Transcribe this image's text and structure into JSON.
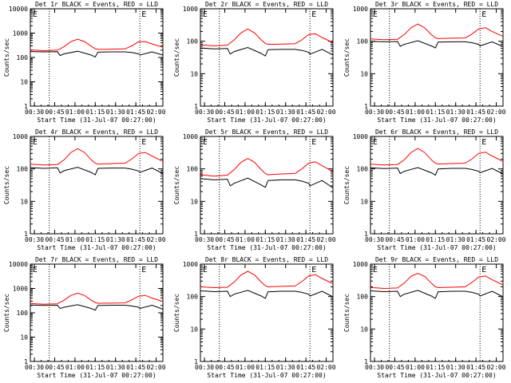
{
  "figure": {
    "background": "#ffffff",
    "axis_color": "#000000",
    "events_color": "#000000",
    "lld_color": "#ff0000"
  },
  "chart_data": [
    {
      "type": "line",
      "title": "Det 1r BLACK = Events, RED = LLD",
      "ylabel": "Counts/sec",
      "xlabel": "Start Time (31-Jul-07 00:27:00)",
      "x_ticks": [
        "00:30",
        "00:45",
        "01:00",
        "01:15",
        "01:30",
        "01:45",
        "02:00"
      ],
      "y_ticks": [
        "1",
        "10",
        "100",
        "1000",
        "10000"
      ],
      "yscale": "log",
      "ylim": [
        1,
        10000
      ],
      "xlim_minutes": [
        0,
        98
      ],
      "markers": [
        {
          "label": "E",
          "x_minutes": 0.5
        },
        {
          "label": "E",
          "x_minutes": 81
        }
      ],
      "vlines_minutes": [
        14,
        81
      ],
      "series": [
        {
          "name": "Events",
          "color": "#000000",
          "x": [
            0,
            10,
            20,
            22,
            25,
            35,
            45,
            48,
            50,
            60,
            70,
            75,
            80,
            81,
            90,
            98
          ],
          "values": [
            175,
            170,
            172,
            120,
            140,
            180,
            125,
            105,
            165,
            170,
            170,
            160,
            140,
            125,
            170,
            125
          ]
        },
        {
          "name": "LLD",
          "color": "#ff0000",
          "x": [
            0,
            10,
            20,
            25,
            30,
            35,
            40,
            45,
            48,
            50,
            60,
            70,
            75,
            80,
            85,
            90,
            98
          ],
          "values": [
            205,
            190,
            200,
            280,
            450,
            560,
            450,
            290,
            230,
            215,
            220,
            225,
            300,
            440,
            450,
            360,
            260
          ]
        }
      ]
    },
    {
      "type": "line",
      "title": "Det 2r BLACK = Events, RED = LLD",
      "ylabel": "Counts/sec",
      "xlabel": "Start Time (31-Jul-07 00:27:00)",
      "x_ticks": [
        "00:30",
        "00:45",
        "01:00",
        "01:15",
        "01:30",
        "01:45",
        "02:00"
      ],
      "y_ticks": [
        "1",
        "10",
        "100",
        "1000"
      ],
      "yscale": "log",
      "ylim": [
        1,
        1000
      ],
      "xlim_minutes": [
        0,
        98
      ],
      "markers": [
        {
          "label": "E",
          "x_minutes": 0.5
        },
        {
          "label": "E",
          "x_minutes": 81
        }
      ],
      "vlines_minutes": [
        14,
        81
      ],
      "series": [
        {
          "name": "Events",
          "color": "#000000",
          "x": [
            0,
            10,
            20,
            22,
            25,
            35,
            45,
            48,
            50,
            60,
            70,
            75,
            80,
            81,
            90,
            98
          ],
          "values": [
            62,
            58,
            60,
            40,
            48,
            64,
            42,
            35,
            55,
            56,
            56,
            52,
            46,
            40,
            56,
            38
          ]
        },
        {
          "name": "LLD",
          "color": "#ff0000",
          "x": [
            0,
            10,
            20,
            25,
            30,
            35,
            40,
            45,
            48,
            50,
            60,
            70,
            75,
            80,
            85,
            90,
            98
          ],
          "values": [
            78,
            72,
            76,
            110,
            180,
            240,
            180,
            110,
            86,
            80,
            82,
            84,
            110,
            160,
            170,
            130,
            90
          ]
        }
      ]
    },
    {
      "type": "line",
      "title": "Det 3r BLACK = Events, RED = LLD",
      "ylabel": "Counts/sec",
      "xlabel": "Start Time (31-Jul-07 00:27:00)",
      "x_ticks": [
        "00:30",
        "00:45",
        "01:00",
        "01:15",
        "01:30",
        "01:45",
        "02:00"
      ],
      "y_ticks": [
        "1",
        "10",
        "100",
        "1000"
      ],
      "yscale": "log",
      "ylim": [
        1,
        1000
      ],
      "xlim_minutes": [
        0,
        98
      ],
      "markers": [
        {
          "label": "E",
          "x_minutes": 0.5
        },
        {
          "label": "E",
          "x_minutes": 81
        }
      ],
      "vlines_minutes": [
        14,
        81
      ],
      "series": [
        {
          "name": "Events",
          "color": "#000000",
          "x": [
            0,
            10,
            20,
            22,
            25,
            35,
            45,
            48,
            50,
            60,
            70,
            75,
            80,
            81,
            90,
            98
          ],
          "values": [
            100,
            96,
            98,
            70,
            80,
            104,
            72,
            62,
            94,
            96,
            96,
            90,
            80,
            72,
            96,
            68
          ]
        },
        {
          "name": "LLD",
          "color": "#ff0000",
          "x": [
            0,
            10,
            20,
            25,
            30,
            35,
            40,
            45,
            48,
            50,
            60,
            70,
            75,
            80,
            85,
            90,
            98
          ],
          "values": [
            118,
            112,
            115,
            160,
            260,
            340,
            260,
            160,
            128,
            120,
            124,
            126,
            165,
            240,
            260,
            200,
            140
          ]
        }
      ]
    },
    {
      "type": "line",
      "title": "Det 4r BLACK = Events, RED = LLD",
      "ylabel": "Counts/sec",
      "xlabel": "Start Time (31-Jul-07 00:27:00)",
      "x_ticks": [
        "00:30",
        "00:45",
        "01:00",
        "01:15",
        "01:30",
        "01:45",
        "02:00"
      ],
      "y_ticks": [
        "1",
        "10",
        "100",
        "1000"
      ],
      "yscale": "log",
      "ylim": [
        1,
        1000
      ],
      "xlim_minutes": [
        0,
        98
      ],
      "markers": [
        {
          "label": "E",
          "x_minutes": 0.5
        },
        {
          "label": "E",
          "x_minutes": 81
        }
      ],
      "vlines_minutes": [
        14,
        81
      ],
      "series": [
        {
          "name": "Events",
          "color": "#000000",
          "x": [
            0,
            10,
            20,
            22,
            25,
            35,
            45,
            48,
            50,
            60,
            70,
            75,
            80,
            81,
            90,
            98
          ],
          "values": [
            110,
            104,
            108,
            75,
            88,
            112,
            78,
            66,
            104,
            106,
            106,
            98,
            86,
            78,
            106,
            72
          ]
        },
        {
          "name": "LLD",
          "color": "#ff0000",
          "x": [
            0,
            10,
            20,
            25,
            30,
            35,
            40,
            45,
            48,
            50,
            60,
            70,
            75,
            80,
            85,
            90,
            98
          ],
          "values": [
            140,
            132,
            136,
            190,
            320,
            420,
            320,
            190,
            150,
            140,
            146,
            150,
            200,
            300,
            320,
            250,
            170
          ]
        }
      ]
    },
    {
      "type": "line",
      "title": "Det 5r BLACK = Events, RED = LLD",
      "ylabel": "Counts/sec",
      "xlabel": "Start Time (31-Jul-07 00:27:00)",
      "x_ticks": [
        "00:30",
        "00:45",
        "01:00",
        "01:15",
        "01:30",
        "01:45",
        "02:00"
      ],
      "y_ticks": [
        "1",
        "10",
        "100",
        "1000"
      ],
      "yscale": "log",
      "ylim": [
        1,
        1000
      ],
      "xlim_minutes": [
        0,
        98
      ],
      "markers": [
        {
          "label": "E",
          "x_minutes": 0.5
        },
        {
          "label": "E",
          "x_minutes": 81
        }
      ],
      "vlines_minutes": [
        14,
        81
      ],
      "series": [
        {
          "name": "Events",
          "color": "#000000",
          "x": [
            0,
            10,
            20,
            22,
            25,
            35,
            45,
            48,
            50,
            60,
            70,
            75,
            80,
            81,
            90,
            98
          ],
          "values": [
            50,
            46,
            48,
            30,
            36,
            52,
            32,
            27,
            44,
            46,
            46,
            42,
            36,
            30,
            44,
            26
          ]
        },
        {
          "name": "LLD",
          "color": "#ff0000",
          "x": [
            0,
            10,
            20,
            25,
            30,
            35,
            40,
            45,
            48,
            50,
            60,
            70,
            75,
            80,
            85,
            90,
            98
          ],
          "values": [
            66,
            60,
            64,
            95,
            160,
            210,
            160,
            95,
            72,
            66,
            70,
            72,
            100,
            150,
            165,
            125,
            82
          ]
        }
      ]
    },
    {
      "type": "line",
      "title": "Det 6r BLACK = Events, RED = LLD",
      "ylabel": "Counts/sec",
      "xlabel": "Start Time (31-Jul-07 00:27:00)",
      "x_ticks": [
        "00:30",
        "00:45",
        "01:00",
        "01:15",
        "01:30",
        "01:45",
        "02:00"
      ],
      "y_ticks": [
        "1",
        "10",
        "100",
        "1000"
      ],
      "yscale": "log",
      "ylim": [
        1,
        1000
      ],
      "xlim_minutes": [
        0,
        98
      ],
      "markers": [
        {
          "label": "E",
          "x_minutes": 0.5
        },
        {
          "label": "E",
          "x_minutes": 81
        }
      ],
      "vlines_minutes": [
        14,
        81
      ],
      "series": [
        {
          "name": "Events",
          "color": "#000000",
          "x": [
            0,
            10,
            20,
            22,
            25,
            35,
            45,
            48,
            50,
            60,
            70,
            75,
            80,
            81,
            90,
            98
          ],
          "values": [
            108,
            102,
            106,
            72,
            84,
            110,
            76,
            64,
            100,
            104,
            104,
            96,
            84,
            76,
            104,
            70
          ]
        },
        {
          "name": "LLD",
          "color": "#ff0000",
          "x": [
            0,
            10,
            20,
            25,
            30,
            35,
            40,
            45,
            48,
            50,
            60,
            70,
            75,
            80,
            85,
            90,
            98
          ],
          "values": [
            140,
            132,
            136,
            190,
            320,
            430,
            320,
            190,
            150,
            142,
            146,
            150,
            200,
            300,
            330,
            250,
            170
          ]
        }
      ]
    },
    {
      "type": "line",
      "title": "Det 7r BLACK = Events, RED = LLD",
      "ylabel": "Counts/sec",
      "xlabel": "Start Time (31-Jul-07 00:27:00)",
      "x_ticks": [
        "00:30",
        "00:45",
        "01:00",
        "01:15",
        "01:30",
        "01:45",
        "02:00"
      ],
      "y_ticks": [
        "1",
        "10",
        "100",
        "1000",
        "10000"
      ],
      "yscale": "log",
      "ylim": [
        1,
        10000
      ],
      "xlim_minutes": [
        0,
        98
      ],
      "markers": [
        {
          "label": "E",
          "x_minutes": 0.5
        },
        {
          "label": "E",
          "x_minutes": 81
        }
      ],
      "vlines_minutes": [
        14,
        81
      ],
      "series": [
        {
          "name": "Events",
          "color": "#000000",
          "x": [
            0,
            10,
            20,
            22,
            25,
            35,
            45,
            48,
            50,
            60,
            70,
            75,
            80,
            81,
            90,
            98
          ],
          "values": [
            210,
            200,
            205,
            150,
            170,
            215,
            150,
            128,
            200,
            205,
            205,
            190,
            170,
            150,
            205,
            140
          ]
        },
        {
          "name": "LLD",
          "color": "#ff0000",
          "x": [
            0,
            10,
            20,
            25,
            30,
            35,
            40,
            45,
            48,
            50,
            60,
            70,
            75,
            80,
            85,
            90,
            98
          ],
          "values": [
            240,
            225,
            235,
            330,
            520,
            640,
            520,
            330,
            265,
            245,
            250,
            255,
            340,
            480,
            520,
            400,
            290
          ]
        }
      ]
    },
    {
      "type": "line",
      "title": "Det 8r BLACK = Events, RED = LLD",
      "ylabel": "Counts/sec",
      "xlabel": "Start Time (31-Jul-07 00:27:00)",
      "x_ticks": [
        "00:30",
        "00:45",
        "01:00",
        "01:15",
        "01:30",
        "01:45",
        "02:00"
      ],
      "y_ticks": [
        "1",
        "10",
        "100",
        "1000"
      ],
      "yscale": "log",
      "ylim": [
        1,
        1000
      ],
      "xlim_minutes": [
        0,
        98
      ],
      "markers": [
        {
          "label": "E",
          "x_minutes": 0.5
        },
        {
          "label": "E",
          "x_minutes": 81
        }
      ],
      "vlines_minutes": [
        14,
        81
      ],
      "series": [
        {
          "name": "Events",
          "color": "#000000",
          "x": [
            0,
            10,
            20,
            22,
            25,
            35,
            45,
            48,
            50,
            60,
            70,
            75,
            80,
            81,
            90,
            98
          ],
          "values": [
            150,
            142,
            146,
            100,
            118,
            155,
            104,
            88,
            140,
            146,
            146,
            135,
            118,
            104,
            146,
            98
          ]
        },
        {
          "name": "LLD",
          "color": "#ff0000",
          "x": [
            0,
            10,
            20,
            25,
            30,
            35,
            40,
            45,
            48,
            50,
            60,
            70,
            75,
            80,
            85,
            90,
            98
          ],
          "values": [
            200,
            188,
            194,
            280,
            460,
            600,
            460,
            280,
            215,
            200,
            206,
            212,
            290,
            430,
            470,
            360,
            250
          ]
        }
      ]
    },
    {
      "type": "line",
      "title": "Det 9r BLACK = Events, RED = LLD",
      "ylabel": "Counts/sec",
      "xlabel": "Start Time (31-Jul-07 00:27:00)",
      "x_ticks": [
        "00:30",
        "00:45",
        "01:00",
        "01:15",
        "01:30",
        "01:45",
        "02:00"
      ],
      "y_ticks": [
        "1",
        "10",
        "100",
        "1000"
      ],
      "yscale": "log",
      "ylim": [
        1,
        1000
      ],
      "xlim_minutes": [
        0,
        98
      ],
      "markers": [
        {
          "label": "E",
          "x_minutes": 0.5
        },
        {
          "label": "E",
          "x_minutes": 81
        }
      ],
      "vlines_minutes": [
        14,
        81
      ],
      "series": [
        {
          "name": "Events",
          "color": "#000000",
          "x": [
            0,
            10,
            20,
            22,
            25,
            35,
            45,
            48,
            50,
            60,
            70,
            75,
            80,
            81,
            90,
            98
          ],
          "values": [
            150,
            142,
            146,
            100,
            118,
            155,
            104,
            88,
            140,
            146,
            146,
            135,
            118,
            104,
            146,
            98
          ]
        },
        {
          "name": "LLD",
          "color": "#ff0000",
          "x": [
            0,
            10,
            20,
            25,
            30,
            35,
            40,
            45,
            48,
            50,
            60,
            70,
            75,
            80,
            85,
            90,
            98
          ],
          "values": [
            190,
            178,
            184,
            260,
            420,
            520,
            420,
            260,
            200,
            188,
            194,
            200,
            270,
            400,
            430,
            330,
            230
          ]
        }
      ]
    }
  ]
}
